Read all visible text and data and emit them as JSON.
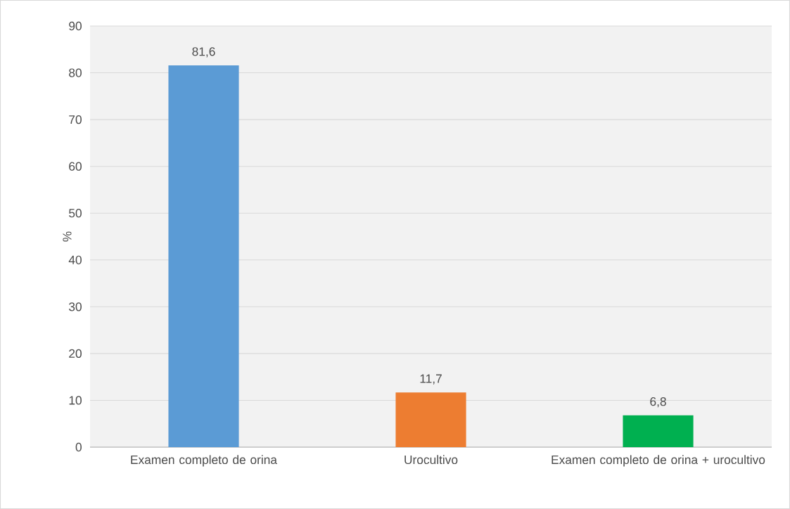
{
  "chart_data": {
    "type": "bar",
    "ylabel": "%",
    "categories": [
      "Examen completo de orina",
      "Urocultivo",
      "Examen completo de orina + urocultivo"
    ],
    "values": [
      81.6,
      11.7,
      6.8
    ],
    "colors": [
      "#5b9bd5",
      "#ed7d31",
      "#00b050"
    ],
    "value_labels": [
      "81,6",
      "11,7",
      "6,8"
    ],
    "ylim": [
      0,
      90
    ],
    "yticks": [
      0,
      10,
      20,
      30,
      40,
      50,
      60,
      70,
      80,
      90
    ],
    "grid": "y"
  }
}
